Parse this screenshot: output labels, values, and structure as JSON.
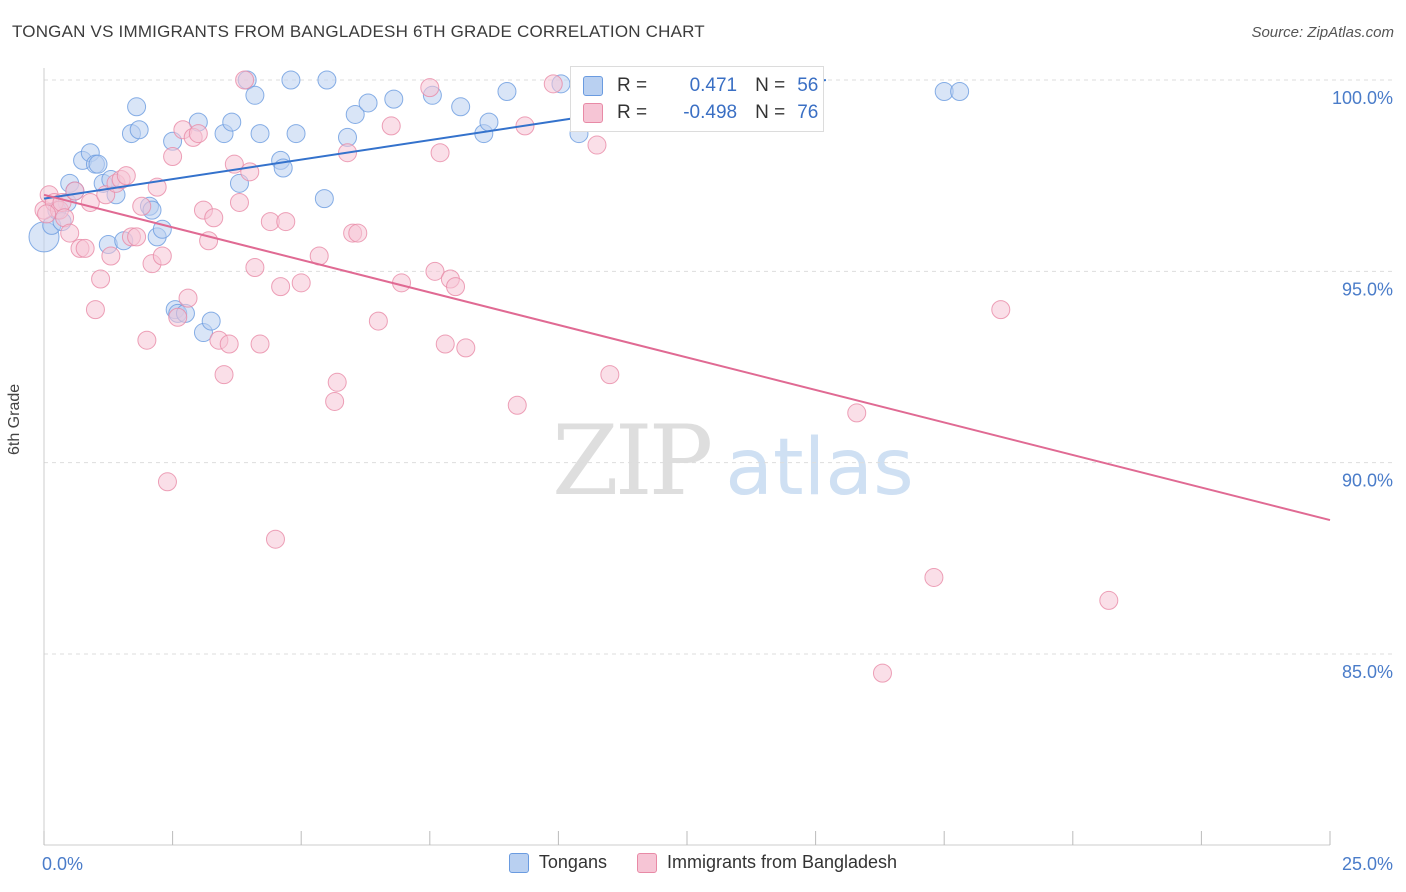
{
  "chart_data": {
    "type": "scatter",
    "title": "TONGAN VS IMMIGRANTS FROM BANGLADESH 6TH GRADE CORRELATION CHART",
    "source": "Source: ZipAtlas.com",
    "xlabel": "",
    "ylabel": "6th Grade",
    "xlim": [
      0,
      25
    ],
    "ylim": [
      80.5,
      100.8
    ],
    "x_tick_labels": [
      "0.0%",
      "25.0%"
    ],
    "y_ticks": [
      100,
      95,
      90,
      85
    ],
    "y_tick_labels": [
      "100.0%",
      "95.0%",
      "90.0%",
      "85.0%"
    ],
    "grid": true,
    "legend_position": "bottom",
    "colors": {
      "tongans": "#6a9be0",
      "tongans_fill": "#b9d0f1",
      "bangladesh": "#e88aa6",
      "bangladesh_fill": "#f6c5d5",
      "tongans_line": "#3472cc",
      "bangladesh_line": "#e06a93"
    },
    "stats": [
      {
        "label_r": "R =",
        "r": "0.471",
        "label_n": "N =",
        "n": "56"
      },
      {
        "label_r": "R =",
        "r": "-0.498",
        "label_n": "N =",
        "n": "76"
      }
    ],
    "series": [
      {
        "name": "Tongans",
        "trend": {
          "x": [
            0,
            15.2
          ],
          "y": [
            96.9,
            100.0
          ]
        },
        "points": [
          [
            0.0,
            95.9
          ],
          [
            0.15,
            96.2
          ],
          [
            0.25,
            96.6
          ],
          [
            0.35,
            96.3
          ],
          [
            0.45,
            96.8
          ],
          [
            0.5,
            97.3
          ],
          [
            0.6,
            97.1
          ],
          [
            0.75,
            97.9
          ],
          [
            0.9,
            98.1
          ],
          [
            1.0,
            97.8
          ],
          [
            1.05,
            97.8
          ],
          [
            1.15,
            97.3
          ],
          [
            1.25,
            95.7
          ],
          [
            1.3,
            97.4
          ],
          [
            1.4,
            97.0
          ],
          [
            1.55,
            95.8
          ],
          [
            1.7,
            98.6
          ],
          [
            1.85,
            98.7
          ],
          [
            1.8,
            99.3
          ],
          [
            2.05,
            96.7
          ],
          [
            2.1,
            96.6
          ],
          [
            2.2,
            95.9
          ],
          [
            2.3,
            96.1
          ],
          [
            2.5,
            98.4
          ],
          [
            2.55,
            94.0
          ],
          [
            2.6,
            93.9
          ],
          [
            2.75,
            93.9
          ],
          [
            3.0,
            98.9
          ],
          [
            3.1,
            93.4
          ],
          [
            3.25,
            93.7
          ],
          [
            3.5,
            98.6
          ],
          [
            3.65,
            98.9
          ],
          [
            3.8,
            97.3
          ],
          [
            3.95,
            100.0
          ],
          [
            4.1,
            99.6
          ],
          [
            4.2,
            98.6
          ],
          [
            4.6,
            97.9
          ],
          [
            4.65,
            97.7
          ],
          [
            4.8,
            100.0
          ],
          [
            4.9,
            98.6
          ],
          [
            5.45,
            96.9
          ],
          [
            5.5,
            100.0
          ],
          [
            5.9,
            98.5
          ],
          [
            6.05,
            99.1
          ],
          [
            6.3,
            99.4
          ],
          [
            6.8,
            99.5
          ],
          [
            7.55,
            99.6
          ],
          [
            8.1,
            99.3
          ],
          [
            8.55,
            98.6
          ],
          [
            8.65,
            98.9
          ],
          [
            9.0,
            99.7
          ],
          [
            10.05,
            99.9
          ],
          [
            10.4,
            98.6
          ],
          [
            11.7,
            100.0
          ],
          [
            17.5,
            99.7
          ],
          [
            17.8,
            99.7
          ]
        ]
      },
      {
        "name": "Immigrants from Bangladesh",
        "trend": {
          "x": [
            0,
            25
          ],
          "y": [
            97.0,
            88.5
          ]
        },
        "points": [
          [
            0.0,
            96.6
          ],
          [
            0.1,
            97.0
          ],
          [
            0.2,
            96.8
          ],
          [
            0.3,
            96.6
          ],
          [
            0.35,
            96.8
          ],
          [
            0.4,
            96.4
          ],
          [
            0.5,
            96.0
          ],
          [
            0.6,
            97.1
          ],
          [
            0.7,
            95.6
          ],
          [
            0.8,
            95.6
          ],
          [
            0.9,
            96.8
          ],
          [
            1.0,
            94.0
          ],
          [
            1.1,
            94.8
          ],
          [
            1.2,
            97.0
          ],
          [
            1.3,
            95.4
          ],
          [
            1.4,
            97.3
          ],
          [
            1.5,
            97.4
          ],
          [
            1.6,
            97.5
          ],
          [
            1.7,
            95.9
          ],
          [
            1.8,
            95.9
          ],
          [
            1.9,
            96.7
          ],
          [
            2.0,
            93.2
          ],
          [
            2.1,
            95.2
          ],
          [
            2.2,
            97.2
          ],
          [
            2.3,
            95.4
          ],
          [
            2.4,
            89.5
          ],
          [
            2.5,
            98.0
          ],
          [
            2.6,
            93.8
          ],
          [
            2.7,
            98.7
          ],
          [
            2.8,
            94.3
          ],
          [
            2.9,
            98.5
          ],
          [
            3.0,
            98.6
          ],
          [
            3.1,
            96.6
          ],
          [
            3.2,
            95.8
          ],
          [
            3.3,
            96.4
          ],
          [
            3.4,
            93.2
          ],
          [
            3.5,
            92.3
          ],
          [
            3.6,
            93.1
          ],
          [
            3.7,
            97.8
          ],
          [
            3.8,
            96.8
          ],
          [
            3.9,
            100.0
          ],
          [
            4.0,
            97.6
          ],
          [
            4.1,
            95.1
          ],
          [
            4.2,
            93.1
          ],
          [
            4.4,
            96.3
          ],
          [
            4.5,
            88.0
          ],
          [
            4.6,
            94.6
          ],
          [
            4.7,
            96.3
          ],
          [
            5.0,
            94.7
          ],
          [
            5.35,
            95.4
          ],
          [
            5.65,
            91.6
          ],
          [
            5.7,
            92.1
          ],
          [
            5.9,
            98.1
          ],
          [
            6.0,
            96.0
          ],
          [
            6.1,
            96.0
          ],
          [
            6.5,
            93.7
          ],
          [
            6.75,
            98.8
          ],
          [
            6.95,
            94.7
          ],
          [
            7.5,
            99.8
          ],
          [
            7.6,
            95.0
          ],
          [
            7.7,
            98.1
          ],
          [
            7.8,
            93.1
          ],
          [
            7.9,
            94.8
          ],
          [
            8.0,
            94.6
          ],
          [
            8.2,
            93.0
          ],
          [
            9.2,
            91.5
          ],
          [
            9.35,
            98.8
          ],
          [
            9.9,
            99.9
          ],
          [
            10.75,
            98.3
          ],
          [
            11.0,
            92.3
          ],
          [
            15.8,
            91.3
          ],
          [
            16.3,
            84.5
          ],
          [
            17.3,
            87.0
          ],
          [
            18.6,
            94.0
          ],
          [
            20.7,
            86.4
          ],
          [
            0.05,
            96.5
          ]
        ]
      }
    ]
  },
  "legend": {
    "items": [
      {
        "label": "Tongans"
      },
      {
        "label": "Immigrants from Bangladesh"
      }
    ]
  },
  "watermark": {
    "zip": "ZIP",
    "atlas": "atlas"
  }
}
